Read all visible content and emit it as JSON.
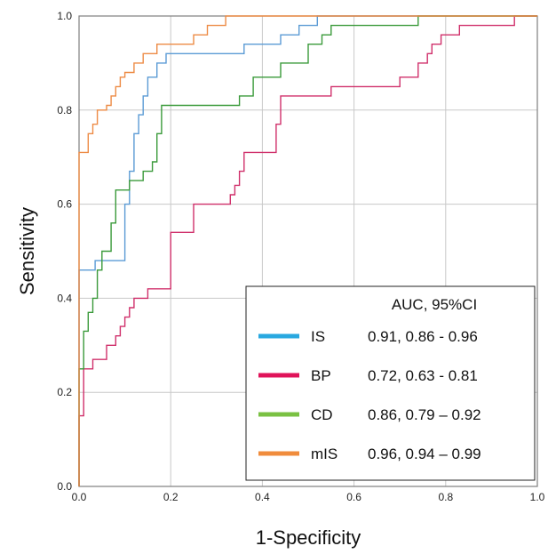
{
  "chart_data": {
    "type": "line",
    "title": "",
    "xlabel": "1-Specificity",
    "ylabel": "Sensitivity",
    "xlim": [
      0,
      1
    ],
    "ylim": [
      0,
      1
    ],
    "x_ticks": [
      "0.0",
      "0.2",
      "0.4",
      "0.6",
      "0.8",
      "1.0"
    ],
    "y_ticks": [
      "0.0",
      "0.2",
      "0.4",
      "0.6",
      "0.8",
      "1.0"
    ],
    "grid": true,
    "legend_position": "bottom-right",
    "legend_header": "AUC, 95%CI",
    "series": [
      {
        "name": "IS",
        "auc_text": "0.91, 0.86 - 0.96",
        "color": "#5b9bd5",
        "legend_color": "#29a8e0",
        "points": [
          [
            0,
            0
          ],
          [
            0,
            0.46
          ],
          [
            0.035,
            0.46
          ],
          [
            0.035,
            0.48
          ],
          [
            0.1,
            0.48
          ],
          [
            0.1,
            0.6
          ],
          [
            0.11,
            0.6
          ],
          [
            0.11,
            0.67
          ],
          [
            0.12,
            0.67
          ],
          [
            0.12,
            0.75
          ],
          [
            0.13,
            0.75
          ],
          [
            0.13,
            0.79
          ],
          [
            0.14,
            0.79
          ],
          [
            0.14,
            0.83
          ],
          [
            0.15,
            0.83
          ],
          [
            0.15,
            0.87
          ],
          [
            0.17,
            0.87
          ],
          [
            0.17,
            0.9
          ],
          [
            0.19,
            0.9
          ],
          [
            0.19,
            0.92
          ],
          [
            0.36,
            0.92
          ],
          [
            0.36,
            0.94
          ],
          [
            0.44,
            0.94
          ],
          [
            0.44,
            0.96
          ],
          [
            0.48,
            0.96
          ],
          [
            0.48,
            0.98
          ],
          [
            0.52,
            0.98
          ],
          [
            0.52,
            1
          ],
          [
            1,
            1
          ]
        ]
      },
      {
        "name": "BP",
        "auc_text": "0.72, 0.63 - 0.81",
        "color": "#d0306b",
        "legend_color": "#e0135a",
        "points": [
          [
            0,
            0
          ],
          [
            0,
            0.15
          ],
          [
            0.01,
            0.15
          ],
          [
            0.01,
            0.25
          ],
          [
            0.03,
            0.25
          ],
          [
            0.03,
            0.27
          ],
          [
            0.06,
            0.27
          ],
          [
            0.06,
            0.3
          ],
          [
            0.08,
            0.3
          ],
          [
            0.08,
            0.32
          ],
          [
            0.09,
            0.32
          ],
          [
            0.09,
            0.34
          ],
          [
            0.1,
            0.34
          ],
          [
            0.1,
            0.36
          ],
          [
            0.11,
            0.36
          ],
          [
            0.11,
            0.38
          ],
          [
            0.12,
            0.38
          ],
          [
            0.12,
            0.4
          ],
          [
            0.15,
            0.4
          ],
          [
            0.15,
            0.42
          ],
          [
            0.2,
            0.42
          ],
          [
            0.2,
            0.54
          ],
          [
            0.25,
            0.54
          ],
          [
            0.25,
            0.6
          ],
          [
            0.33,
            0.6
          ],
          [
            0.33,
            0.62
          ],
          [
            0.34,
            0.62
          ],
          [
            0.34,
            0.64
          ],
          [
            0.35,
            0.64
          ],
          [
            0.35,
            0.67
          ],
          [
            0.36,
            0.67
          ],
          [
            0.36,
            0.71
          ],
          [
            0.43,
            0.71
          ],
          [
            0.43,
            0.77
          ],
          [
            0.44,
            0.77
          ],
          [
            0.44,
            0.83
          ],
          [
            0.55,
            0.83
          ],
          [
            0.55,
            0.85
          ],
          [
            0.7,
            0.85
          ],
          [
            0.7,
            0.87
          ],
          [
            0.74,
            0.87
          ],
          [
            0.74,
            0.9
          ],
          [
            0.76,
            0.9
          ],
          [
            0.76,
            0.92
          ],
          [
            0.77,
            0.92
          ],
          [
            0.77,
            0.94
          ],
          [
            0.79,
            0.94
          ],
          [
            0.79,
            0.96
          ],
          [
            0.83,
            0.96
          ],
          [
            0.83,
            0.98
          ],
          [
            0.95,
            0.98
          ],
          [
            0.95,
            1
          ],
          [
            1,
            1
          ]
        ]
      },
      {
        "name": "CD",
        "auc_text": "0.86, 0.79 – 0.92",
        "color": "#3a9a3a",
        "legend_color": "#7ac143",
        "points": [
          [
            0,
            0
          ],
          [
            0,
            0.25
          ],
          [
            0.01,
            0.25
          ],
          [
            0.01,
            0.33
          ],
          [
            0.02,
            0.33
          ],
          [
            0.02,
            0.37
          ],
          [
            0.03,
            0.37
          ],
          [
            0.03,
            0.4
          ],
          [
            0.04,
            0.4
          ],
          [
            0.04,
            0.46
          ],
          [
            0.05,
            0.46
          ],
          [
            0.05,
            0.5
          ],
          [
            0.07,
            0.5
          ],
          [
            0.07,
            0.56
          ],
          [
            0.08,
            0.56
          ],
          [
            0.08,
            0.63
          ],
          [
            0.11,
            0.63
          ],
          [
            0.11,
            0.65
          ],
          [
            0.14,
            0.65
          ],
          [
            0.14,
            0.67
          ],
          [
            0.16,
            0.67
          ],
          [
            0.16,
            0.69
          ],
          [
            0.17,
            0.69
          ],
          [
            0.17,
            0.75
          ],
          [
            0.18,
            0.75
          ],
          [
            0.18,
            0.81
          ],
          [
            0.35,
            0.81
          ],
          [
            0.35,
            0.83
          ],
          [
            0.38,
            0.83
          ],
          [
            0.38,
            0.87
          ],
          [
            0.44,
            0.87
          ],
          [
            0.44,
            0.9
          ],
          [
            0.5,
            0.9
          ],
          [
            0.5,
            0.94
          ],
          [
            0.53,
            0.94
          ],
          [
            0.53,
            0.96
          ],
          [
            0.55,
            0.96
          ],
          [
            0.55,
            0.98
          ],
          [
            0.74,
            0.98
          ],
          [
            0.74,
            1
          ],
          [
            1,
            1
          ]
        ]
      },
      {
        "name": "mIS",
        "auc_text": "0.96, 0.94 – 0.99",
        "color": "#ed8b45",
        "legend_color": "#f08c3c",
        "points": [
          [
            0,
            0
          ],
          [
            0,
            0.71
          ],
          [
            0.02,
            0.71
          ],
          [
            0.02,
            0.75
          ],
          [
            0.03,
            0.75
          ],
          [
            0.03,
            0.77
          ],
          [
            0.04,
            0.77
          ],
          [
            0.04,
            0.8
          ],
          [
            0.06,
            0.8
          ],
          [
            0.06,
            0.81
          ],
          [
            0.07,
            0.81
          ],
          [
            0.07,
            0.83
          ],
          [
            0.08,
            0.83
          ],
          [
            0.08,
            0.85
          ],
          [
            0.09,
            0.85
          ],
          [
            0.09,
            0.87
          ],
          [
            0.1,
            0.87
          ],
          [
            0.1,
            0.88
          ],
          [
            0.12,
            0.88
          ],
          [
            0.12,
            0.9
          ],
          [
            0.14,
            0.9
          ],
          [
            0.14,
            0.92
          ],
          [
            0.17,
            0.92
          ],
          [
            0.17,
            0.94
          ],
          [
            0.25,
            0.94
          ],
          [
            0.25,
            0.96
          ],
          [
            0.28,
            0.96
          ],
          [
            0.28,
            0.98
          ],
          [
            0.32,
            0.98
          ],
          [
            0.32,
            1
          ],
          [
            1,
            1
          ]
        ]
      }
    ]
  }
}
